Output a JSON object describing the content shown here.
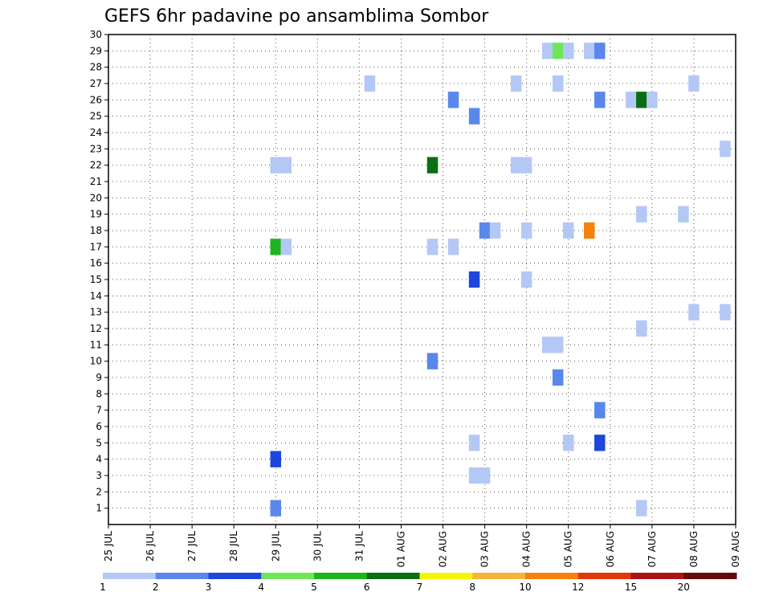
{
  "chart_data": {
    "type": "heatmap",
    "title": "GEFS 6hr padavine po ansamblima Sombor",
    "xlabel": "",
    "ylabel": "",
    "x_tick_labels": [
      "25 JUL",
      "26 JUL",
      "27 JUL",
      "28 JUL",
      "29 JUL",
      "30 JUL",
      "31 JUL",
      "01 AUG",
      "02 AUG",
      "03 AUG",
      "04 AUG",
      "05 AUG",
      "06 AUG",
      "07 AUG",
      "08 AUG",
      "09 AUG"
    ],
    "xlim_days": [
      0,
      15
    ],
    "y_tick_labels": [
      "1",
      "2",
      "3",
      "4",
      "5",
      "6",
      "7",
      "8",
      "9",
      "10",
      "11",
      "12",
      "13",
      "14",
      "15",
      "16",
      "17",
      "18",
      "19",
      "20",
      "21",
      "22",
      "23",
      "24",
      "25",
      "26",
      "27",
      "28",
      "29",
      "30"
    ],
    "ylim": [
      0,
      30
    ],
    "grid": true,
    "colorbar": {
      "placement": "bottom",
      "labels": [
        "1",
        "2",
        "3",
        "4",
        "5",
        "6",
        "7",
        "8",
        "10",
        "12",
        "15",
        "20"
      ],
      "colors": [
        "#b4c8f5",
        "#5a87eb",
        "#1e46dc",
        "#6ee65a",
        "#1eb41e",
        "#0a6e14",
        "#f5f50a",
        "#f5b43c",
        "#f5820a",
        "#e1370a",
        "#aa1414",
        "#640a0a"
      ]
    },
    "cells": [
      {
        "day": 4.0,
        "member": 1,
        "level": 2
      },
      {
        "day": 4.0,
        "member": 4,
        "level": 3
      },
      {
        "day": 4.0,
        "member": 17,
        "level": 5
      },
      {
        "day": 4.25,
        "member": 17,
        "level": 1
      },
      {
        "day": 4.0,
        "member": 22,
        "level": 1
      },
      {
        "day": 4.25,
        "member": 22,
        "level": 1
      },
      {
        "day": 6.25,
        "member": 27,
        "level": 1
      },
      {
        "day": 7.75,
        "member": 22,
        "level": 6
      },
      {
        "day": 7.75,
        "member": 17,
        "level": 1
      },
      {
        "day": 7.75,
        "member": 10,
        "level": 2
      },
      {
        "day": 8.25,
        "member": 26,
        "level": 2
      },
      {
        "day": 8.25,
        "member": 17,
        "level": 1
      },
      {
        "day": 8.75,
        "member": 25,
        "level": 2
      },
      {
        "day": 8.75,
        "member": 15,
        "level": 3
      },
      {
        "day": 8.75,
        "member": 5,
        "level": 1
      },
      {
        "day": 8.75,
        "member": 3,
        "level": 1
      },
      {
        "day": 9.0,
        "member": 3,
        "level": 1
      },
      {
        "day": 9.0,
        "member": 18,
        "level": 2
      },
      {
        "day": 9.25,
        "member": 18,
        "level": 1
      },
      {
        "day": 9.75,
        "member": 27,
        "level": 1
      },
      {
        "day": 9.75,
        "member": 22,
        "level": 1
      },
      {
        "day": 10.0,
        "member": 22,
        "level": 1
      },
      {
        "day": 10.0,
        "member": 18,
        "level": 1
      },
      {
        "day": 10.0,
        "member": 15,
        "level": 1
      },
      {
        "day": 10.5,
        "member": 29,
        "level": 1
      },
      {
        "day": 10.5,
        "member": 11,
        "level": 1
      },
      {
        "day": 10.75,
        "member": 29,
        "level": 4
      },
      {
        "day": 10.75,
        "member": 27,
        "level": 1
      },
      {
        "day": 10.75,
        "member": 11,
        "level": 1
      },
      {
        "day": 10.75,
        "member": 9,
        "level": 2
      },
      {
        "day": 11.0,
        "member": 29,
        "level": 1
      },
      {
        "day": 11.0,
        "member": 18,
        "level": 1
      },
      {
        "day": 11.0,
        "member": 5,
        "level": 1
      },
      {
        "day": 11.5,
        "member": 18,
        "level": 9
      },
      {
        "day": 11.5,
        "member": 29,
        "level": 1
      },
      {
        "day": 11.75,
        "member": 29,
        "level": 2
      },
      {
        "day": 11.75,
        "member": 26,
        "level": 2
      },
      {
        "day": 11.75,
        "member": 7,
        "level": 2
      },
      {
        "day": 11.75,
        "member": 5,
        "level": 3
      },
      {
        "day": 12.5,
        "member": 26,
        "level": 1
      },
      {
        "day": 12.75,
        "member": 26,
        "level": 6
      },
      {
        "day": 13.0,
        "member": 26,
        "level": 1
      },
      {
        "day": 12.75,
        "member": 19,
        "level": 1
      },
      {
        "day": 12.75,
        "member": 12,
        "level": 1
      },
      {
        "day": 12.75,
        "member": 1,
        "level": 1
      },
      {
        "day": 13.75,
        "member": 19,
        "level": 1
      },
      {
        "day": 14.0,
        "member": 27,
        "level": 1
      },
      {
        "day": 14.0,
        "member": 13,
        "level": 1
      },
      {
        "day": 14.75,
        "member": 23,
        "level": 1
      },
      {
        "day": 14.75,
        "member": 13,
        "level": 1
      }
    ]
  }
}
